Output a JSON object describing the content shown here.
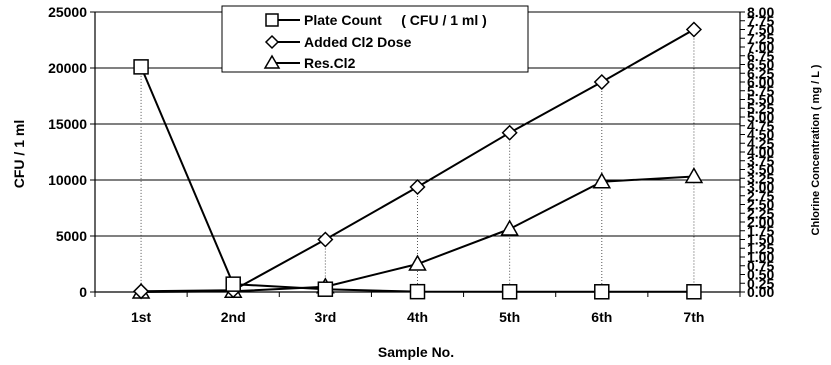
{
  "chart_data": {
    "type": "line",
    "categories": [
      "1st",
      "2nd",
      "3rd",
      "4th",
      "5th",
      "6th",
      "7th"
    ],
    "xlabel": "Sample No.",
    "ylabel": "CFU / 1 ml",
    "y2label": "Chlorine Concentration ( mg / L )",
    "ylim": [
      0,
      25000
    ],
    "y2lim": [
      0,
      8
    ],
    "yticks": [
      0,
      5000,
      10000,
      15000,
      20000,
      25000
    ],
    "ytick_labels": [
      "0",
      "5000",
      "10000",
      "15000",
      "20000",
      "25000"
    ],
    "y2ticks": [
      0,
      0.25,
      0.5,
      0.75,
      1,
      1.25,
      1.5,
      1.75,
      2,
      2.25,
      2.5,
      2.75,
      3,
      3.25,
      3.5,
      3.75,
      4,
      4.25,
      4.5,
      4.75,
      5,
      5.25,
      5.5,
      5.75,
      6,
      6.25,
      6.5,
      6.75,
      7,
      7.25,
      7.5,
      7.75,
      8
    ],
    "y2tick_labels": [
      "0.00",
      "0.25",
      "0.50",
      "0.75",
      "1.00",
      "1.25",
      "1.50",
      "1.75",
      "2.00",
      "2.25",
      "2.50",
      "2.75",
      "3.00",
      "3.25",
      "3.50",
      "3.75",
      "4.00",
      "4.25",
      "4.50",
      "4.75",
      "5.00",
      "5.25",
      "5.50",
      "5.75",
      "6.00",
      "6.25",
      "6.50",
      "6.75",
      "7.00",
      "7.25",
      "7.50",
      "7.75",
      "8.00"
    ],
    "grid": "horizontal major",
    "legend_position": "top-center",
    "series": [
      {
        "name": "Plate Count     ( CFU / 1 ml )",
        "axis": "left",
        "marker": "square",
        "values": [
          20100,
          700,
          250,
          30,
          20,
          20,
          20
        ]
      },
      {
        "name": "Added Cl2 Dose",
        "axis": "right",
        "marker": "diamond",
        "values": [
          0.02,
          0.05,
          1.5,
          3.0,
          4.55,
          6.0,
          7.5
        ]
      },
      {
        "name": "Res.Cl2",
        "axis": "right",
        "marker": "triangle",
        "values": [
          0.0,
          0.02,
          0.15,
          0.8,
          1.8,
          3.15,
          3.3
        ]
      }
    ]
  }
}
